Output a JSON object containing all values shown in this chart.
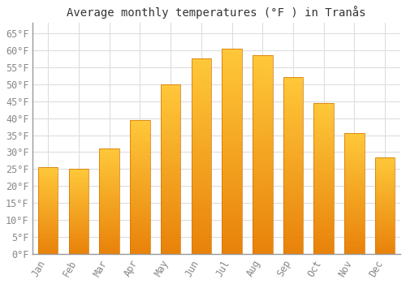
{
  "title": "Average monthly temperatures (°F ) in Tranås",
  "months": [
    "Jan",
    "Feb",
    "Mar",
    "Apr",
    "May",
    "Jun",
    "Jul",
    "Aug",
    "Sep",
    "Oct",
    "Nov",
    "Dec"
  ],
  "values": [
    25.5,
    25.0,
    31.0,
    39.5,
    50.0,
    57.5,
    60.5,
    58.5,
    52.0,
    44.5,
    35.5,
    28.5
  ],
  "bar_color_top": "#FFC83A",
  "bar_color_bottom": "#E8820A",
  "bar_edge_color": "#D07000",
  "background_color": "#FFFFFF",
  "grid_color": "#DDDDDD",
  "text_color": "#888888",
  "spine_color": "#999999",
  "ylim": [
    0,
    68
  ],
  "yticks": [
    0,
    5,
    10,
    15,
    20,
    25,
    30,
    35,
    40,
    45,
    50,
    55,
    60,
    65
  ],
  "title_fontsize": 10,
  "tick_fontsize": 8.5,
  "bar_width": 0.65
}
